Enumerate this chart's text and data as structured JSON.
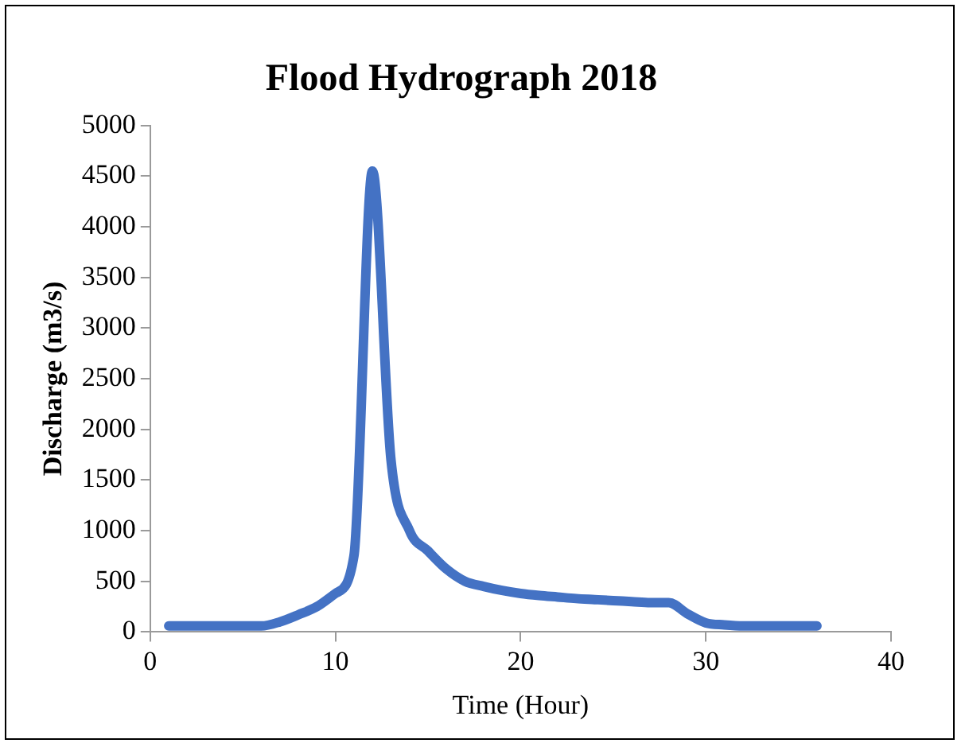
{
  "chart_data": {
    "type": "line",
    "title": "Flood Hydrograph 2018",
    "xlabel": "Time (Hour)",
    "ylabel": "Discharge (m3/s)",
    "xlim": [
      0,
      40
    ],
    "xticks": [
      0,
      10,
      20,
      30,
      40
    ],
    "ylim": [
      0,
      5000
    ],
    "yticks": [
      0,
      500,
      1000,
      1500,
      2000,
      2500,
      3000,
      3500,
      4000,
      4500,
      5000
    ],
    "grid": false,
    "legend": false,
    "marker": "none",
    "line_style": "solid",
    "series": [
      {
        "color": "#4472c4",
        "x": [
          1,
          2,
          3,
          4,
          5,
          6,
          7,
          8,
          9,
          10,
          11,
          12,
          13,
          14,
          15,
          16,
          17,
          18,
          19,
          20,
          21,
          22,
          23,
          24,
          25,
          26,
          27,
          28,
          29,
          30,
          31,
          32,
          33,
          34,
          35,
          36
        ],
        "values": [
          60,
          60,
          60,
          60,
          60,
          60,
          100,
          170,
          250,
          380,
          750,
          4550,
          1700,
          1000,
          800,
          620,
          500,
          450,
          410,
          380,
          360,
          345,
          330,
          320,
          310,
          300,
          290,
          290,
          180,
          90,
          70,
          60,
          60,
          60,
          60,
          60
        ]
      }
    ]
  }
}
